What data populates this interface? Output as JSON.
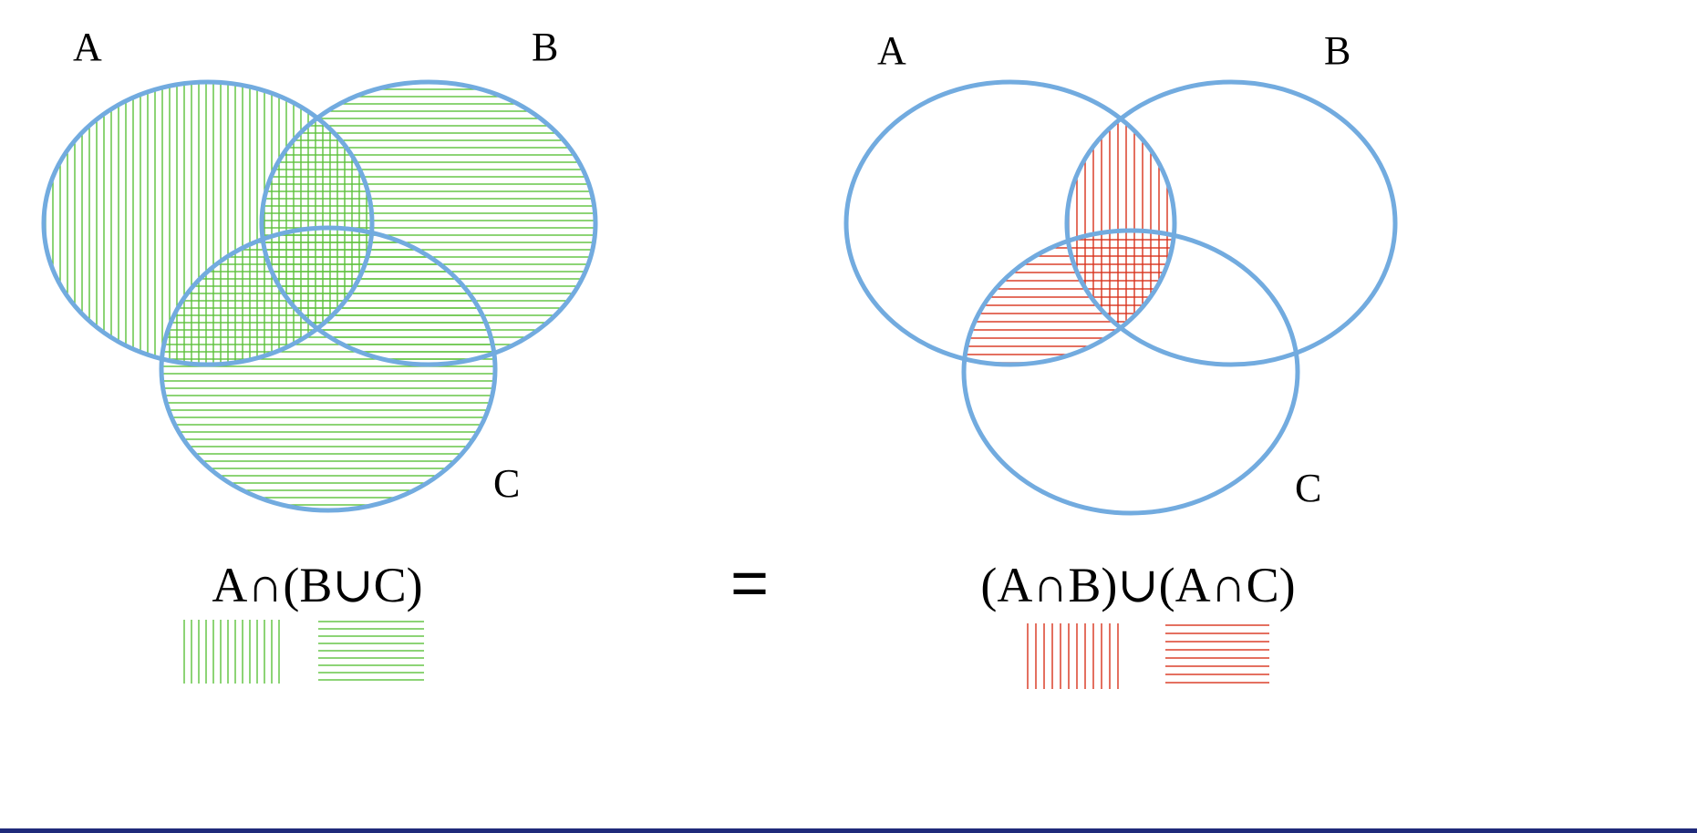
{
  "left_diagram": {
    "labels": {
      "a": "A",
      "b": "B",
      "c": "C"
    },
    "formula": "A∩(B∪C)"
  },
  "equals_sign": "=",
  "right_diagram": {
    "labels": {
      "a": "A",
      "b": "B",
      "c": "C"
    },
    "formula": "(A∩B)∪(A∩C)"
  },
  "colors": {
    "outline": "#72abdf",
    "left_hatch": "#5cc13a",
    "right_hatch": "#d9321c",
    "bottom_rule": "#1f2a7a"
  }
}
